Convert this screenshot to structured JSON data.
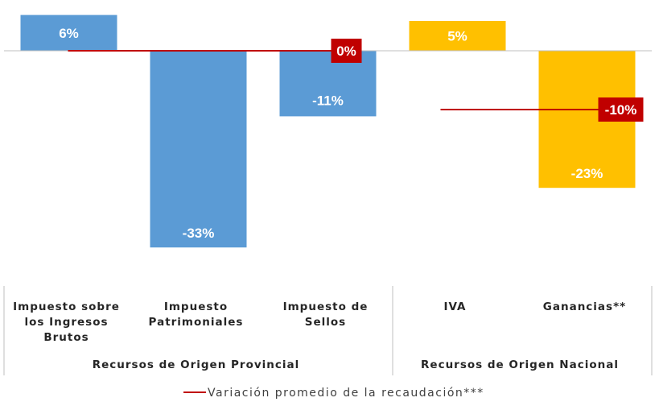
{
  "chart_data": {
    "type": "bar",
    "categories": [
      [
        "Impuesto sobre",
        "los Ingresos",
        "Brutos"
      ],
      [
        "Impuesto",
        "Patrimoniales"
      ],
      [
        "Impuesto de",
        "Sellos"
      ],
      [
        "IVA"
      ],
      [
        "Ganancias**"
      ]
    ],
    "values": [
      6,
      -33,
      -11,
      5,
      -23
    ],
    "value_labels": [
      "6%",
      "-33%",
      "-11%",
      "5%",
      "-23%"
    ],
    "groups": [
      {
        "label": "Recursos de Origen Provincial",
        "categories": [
          0,
          1,
          2
        ],
        "color": "#5B9BD5"
      },
      {
        "label": "Recursos de Origen Nacional",
        "categories": [
          3,
          4
        ],
        "color": "#FFC000"
      }
    ],
    "averages": [
      {
        "group": 0,
        "value": 0,
        "label": "0%"
      },
      {
        "group": 1,
        "value": -10,
        "label": "-10%"
      }
    ],
    "average_color": "#C00000",
    "legend": {
      "label": "Variación promedio de la recaudación***",
      "position": "bottom"
    },
    "ylim": [
      -37,
      6.5
    ],
    "grid": false
  }
}
